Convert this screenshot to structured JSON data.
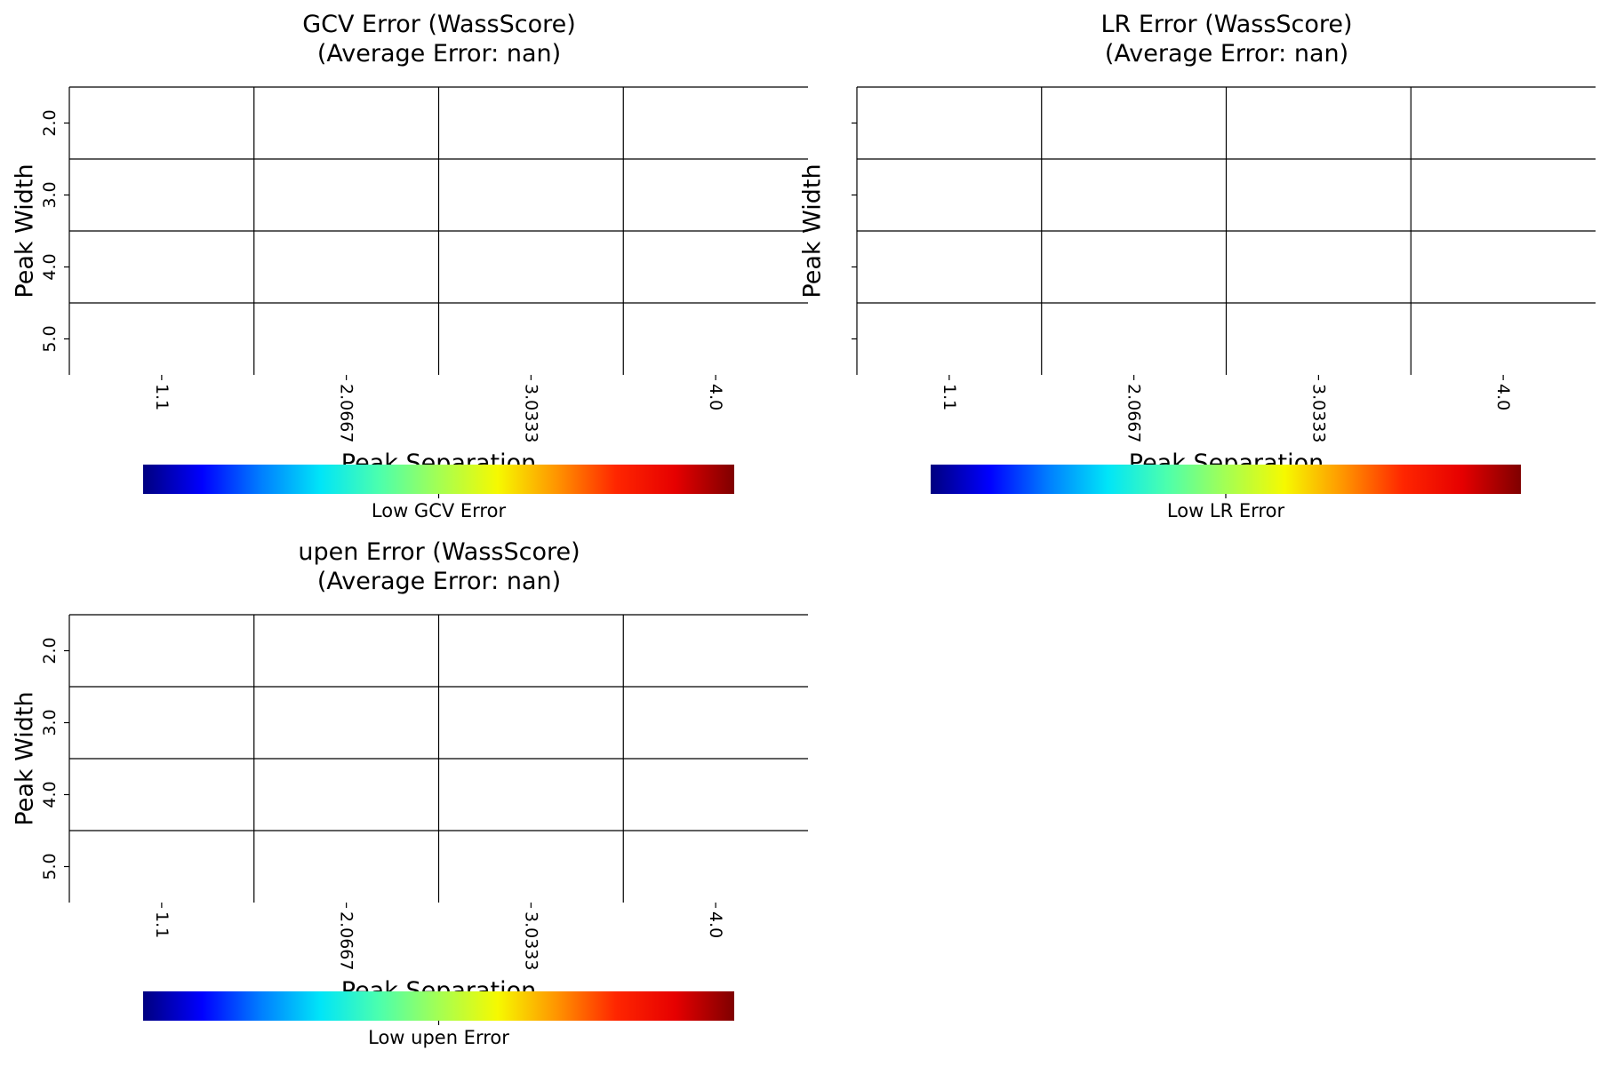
{
  "chart_data": [
    {
      "type": "heatmap",
      "title": "GCV Error (WassScore)\n(Average Error: nan)",
      "xlabel": "Peak Separation",
      "ylabel": "Peak Width",
      "x_tick_labels": [
        "1.1",
        "2.0667",
        "3.0333",
        "4.0"
      ],
      "y_tick_labels": [
        "2.0",
        "3.0",
        "4.0",
        "5.0"
      ],
      "values": [
        [
          null,
          null,
          null,
          null
        ],
        [
          null,
          null,
          null,
          null
        ],
        [
          null,
          null,
          null,
          null
        ],
        [
          null,
          null,
          null,
          null
        ]
      ],
      "grid": true,
      "colormap": "jet",
      "colorbar_label": "Low GCV Error",
      "show_y_tick_labels": true
    },
    {
      "type": "heatmap",
      "title": "LR Error (WassScore)\n(Average Error: nan)",
      "xlabel": "Peak Separation",
      "ylabel": "Peak Width",
      "x_tick_labels": [
        "1.1",
        "2.0667",
        "3.0333",
        "4.0"
      ],
      "y_tick_labels": [
        "2.0",
        "3.0",
        "4.0",
        "5.0"
      ],
      "values": [
        [
          null,
          null,
          null,
          null
        ],
        [
          null,
          null,
          null,
          null
        ],
        [
          null,
          null,
          null,
          null
        ],
        [
          null,
          null,
          null,
          null
        ]
      ],
      "grid": true,
      "colormap": "jet",
      "colorbar_label": "Low LR Error",
      "show_y_tick_labels": false
    },
    {
      "type": "heatmap",
      "title": "upen Error (WassScore)\n(Average Error: nan)",
      "xlabel": "Peak Separation",
      "ylabel": "Peak Width",
      "x_tick_labels": [
        "1.1",
        "2.0667",
        "3.0333",
        "4.0"
      ],
      "y_tick_labels": [
        "2.0",
        "3.0",
        "4.0",
        "5.0"
      ],
      "values": [
        [
          null,
          null,
          null,
          null
        ],
        [
          null,
          null,
          null,
          null
        ],
        [
          null,
          null,
          null,
          null
        ],
        [
          null,
          null,
          null,
          null
        ]
      ],
      "grid": true,
      "colormap": "jet",
      "colorbar_label": "Low upen Error",
      "show_y_tick_labels": true
    }
  ],
  "colors": {
    "jet": [
      "#00007f",
      "#0000ff",
      "#007fff",
      "#00e5f8",
      "#4cffad",
      "#a4ff53",
      "#f6f900",
      "#ff9400",
      "#ff2600",
      "#e60000",
      "#7f0000"
    ],
    "grid": "#000000",
    "background": "#ffffff"
  }
}
